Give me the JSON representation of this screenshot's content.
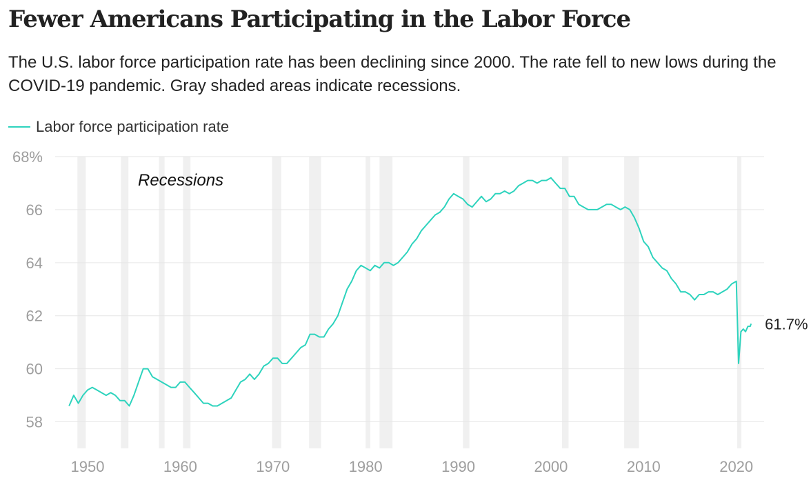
{
  "title": "Fewer Americans Participating in the Labor Force",
  "subtitle": "The U.S. labor force participation rate has been declining since 2000. The rate fell to new lows during the COVID-19 pandemic. Gray shaded areas indicate recessions.",
  "colors": {
    "line": "#2dd3bd",
    "recession": "#f0f0f0",
    "grid": "#e6e6e6"
  },
  "chart_data": {
    "type": "line",
    "series": [
      {
        "name": "Labor force participation rate",
        "points": [
          [
            1948.0,
            58.6
          ],
          [
            1948.5,
            59.0
          ],
          [
            1949.0,
            58.7
          ],
          [
            1949.5,
            59.0
          ],
          [
            1950.0,
            59.2
          ],
          [
            1950.5,
            59.3
          ],
          [
            1951.0,
            59.2
          ],
          [
            1951.5,
            59.1
          ],
          [
            1952.0,
            59.0
          ],
          [
            1952.5,
            59.1
          ],
          [
            1953.0,
            59.0
          ],
          [
            1953.5,
            58.8
          ],
          [
            1954.0,
            58.8
          ],
          [
            1954.5,
            58.6
          ],
          [
            1955.0,
            59.0
          ],
          [
            1955.5,
            59.5
          ],
          [
            1956.0,
            60.0
          ],
          [
            1956.5,
            60.0
          ],
          [
            1957.0,
            59.7
          ],
          [
            1957.5,
            59.6
          ],
          [
            1958.0,
            59.5
          ],
          [
            1958.5,
            59.4
          ],
          [
            1959.0,
            59.3
          ],
          [
            1959.5,
            59.3
          ],
          [
            1960.0,
            59.5
          ],
          [
            1960.5,
            59.5
          ],
          [
            1961.0,
            59.3
          ],
          [
            1961.5,
            59.1
          ],
          [
            1962.0,
            58.9
          ],
          [
            1962.5,
            58.7
          ],
          [
            1963.0,
            58.7
          ],
          [
            1963.5,
            58.6
          ],
          [
            1964.0,
            58.6
          ],
          [
            1964.5,
            58.7
          ],
          [
            1965.0,
            58.8
          ],
          [
            1965.5,
            58.9
          ],
          [
            1966.0,
            59.2
          ],
          [
            1966.5,
            59.5
          ],
          [
            1967.0,
            59.6
          ],
          [
            1967.5,
            59.8
          ],
          [
            1968.0,
            59.6
          ],
          [
            1968.5,
            59.8
          ],
          [
            1969.0,
            60.1
          ],
          [
            1969.5,
            60.2
          ],
          [
            1970.0,
            60.4
          ],
          [
            1970.5,
            60.4
          ],
          [
            1971.0,
            60.2
          ],
          [
            1971.5,
            60.2
          ],
          [
            1972.0,
            60.4
          ],
          [
            1972.5,
            60.6
          ],
          [
            1973.0,
            60.8
          ],
          [
            1973.5,
            60.9
          ],
          [
            1974.0,
            61.3
          ],
          [
            1974.5,
            61.3
          ],
          [
            1975.0,
            61.2
          ],
          [
            1975.5,
            61.2
          ],
          [
            1976.0,
            61.5
          ],
          [
            1976.5,
            61.7
          ],
          [
            1977.0,
            62.0
          ],
          [
            1977.5,
            62.5
          ],
          [
            1978.0,
            63.0
          ],
          [
            1978.5,
            63.3
          ],
          [
            1979.0,
            63.7
          ],
          [
            1979.5,
            63.9
          ],
          [
            1980.0,
            63.8
          ],
          [
            1980.5,
            63.7
          ],
          [
            1981.0,
            63.9
          ],
          [
            1981.5,
            63.8
          ],
          [
            1982.0,
            64.0
          ],
          [
            1982.5,
            64.0
          ],
          [
            1983.0,
            63.9
          ],
          [
            1983.5,
            64.0
          ],
          [
            1984.0,
            64.2
          ],
          [
            1984.5,
            64.4
          ],
          [
            1985.0,
            64.7
          ],
          [
            1985.5,
            64.9
          ],
          [
            1986.0,
            65.2
          ],
          [
            1986.5,
            65.4
          ],
          [
            1987.0,
            65.6
          ],
          [
            1987.5,
            65.8
          ],
          [
            1988.0,
            65.9
          ],
          [
            1988.5,
            66.1
          ],
          [
            1989.0,
            66.4
          ],
          [
            1989.5,
            66.6
          ],
          [
            1990.0,
            66.5
          ],
          [
            1990.5,
            66.4
          ],
          [
            1991.0,
            66.2
          ],
          [
            1991.5,
            66.1
          ],
          [
            1992.0,
            66.3
          ],
          [
            1992.5,
            66.5
          ],
          [
            1993.0,
            66.3
          ],
          [
            1993.5,
            66.4
          ],
          [
            1994.0,
            66.6
          ],
          [
            1994.5,
            66.6
          ],
          [
            1995.0,
            66.7
          ],
          [
            1995.5,
            66.6
          ],
          [
            1996.0,
            66.7
          ],
          [
            1996.5,
            66.9
          ],
          [
            1997.0,
            67.0
          ],
          [
            1997.5,
            67.1
          ],
          [
            1998.0,
            67.1
          ],
          [
            1998.5,
            67.0
          ],
          [
            1999.0,
            67.1
          ],
          [
            1999.5,
            67.1
          ],
          [
            2000.0,
            67.2
          ],
          [
            2000.5,
            67.0
          ],
          [
            2001.0,
            66.8
          ],
          [
            2001.5,
            66.8
          ],
          [
            2002.0,
            66.5
          ],
          [
            2002.5,
            66.5
          ],
          [
            2003.0,
            66.2
          ],
          [
            2003.5,
            66.1
          ],
          [
            2004.0,
            66.0
          ],
          [
            2004.5,
            66.0
          ],
          [
            2005.0,
            66.0
          ],
          [
            2005.5,
            66.1
          ],
          [
            2006.0,
            66.2
          ],
          [
            2006.5,
            66.2
          ],
          [
            2007.0,
            66.1
          ],
          [
            2007.5,
            66.0
          ],
          [
            2008.0,
            66.1
          ],
          [
            2008.5,
            66.0
          ],
          [
            2009.0,
            65.7
          ],
          [
            2009.5,
            65.3
          ],
          [
            2010.0,
            64.8
          ],
          [
            2010.5,
            64.6
          ],
          [
            2011.0,
            64.2
          ],
          [
            2011.5,
            64.0
          ],
          [
            2012.0,
            63.8
          ],
          [
            2012.5,
            63.7
          ],
          [
            2013.0,
            63.4
          ],
          [
            2013.5,
            63.2
          ],
          [
            2014.0,
            62.9
          ],
          [
            2014.5,
            62.9
          ],
          [
            2015.0,
            62.8
          ],
          [
            2015.5,
            62.6
          ],
          [
            2016.0,
            62.8
          ],
          [
            2016.5,
            62.8
          ],
          [
            2017.0,
            62.9
          ],
          [
            2017.5,
            62.9
          ],
          [
            2018.0,
            62.8
          ],
          [
            2018.5,
            62.9
          ],
          [
            2019.0,
            63.0
          ],
          [
            2019.5,
            63.2
          ],
          [
            2020.0,
            63.3
          ],
          [
            2020.25,
            60.2
          ],
          [
            2020.5,
            61.4
          ],
          [
            2020.75,
            61.5
          ],
          [
            2021.0,
            61.4
          ],
          [
            2021.25,
            61.6
          ],
          [
            2021.5,
            61.6
          ],
          [
            2021.6,
            61.7
          ]
        ]
      }
    ],
    "end_label": "61.7%",
    "recessions": [
      [
        1948.9,
        1949.8
      ],
      [
        1953.6,
        1954.4
      ],
      [
        1957.7,
        1958.3
      ],
      [
        1960.3,
        1961.1
      ],
      [
        1969.9,
        1970.9
      ],
      [
        1973.9,
        1975.2
      ],
      [
        1980.0,
        1980.5
      ],
      [
        1981.5,
        1982.9
      ],
      [
        1990.5,
        1991.2
      ],
      [
        2001.2,
        2001.9
      ],
      [
        2007.9,
        2009.5
      ],
      [
        2020.1,
        2020.4
      ]
    ],
    "recession_label": "Recessions",
    "xlim": [
      1946.5,
      2023.0
    ],
    "ylim": [
      57.0,
      68.0
    ],
    "x_ticks": [
      1950,
      1960,
      1970,
      1980,
      1990,
      2000,
      2010,
      2020
    ],
    "x_tick_labels": [
      "1950",
      "1960",
      "1970",
      "1980",
      "1990",
      "2000",
      "2010",
      "2020"
    ],
    "y_ticks": [
      58,
      60,
      62,
      64,
      66,
      68
    ],
    "y_tick_labels": [
      "58",
      "60",
      "62",
      "64",
      "66",
      "68%"
    ],
    "grid": true,
    "legend_position": "top-left"
  }
}
